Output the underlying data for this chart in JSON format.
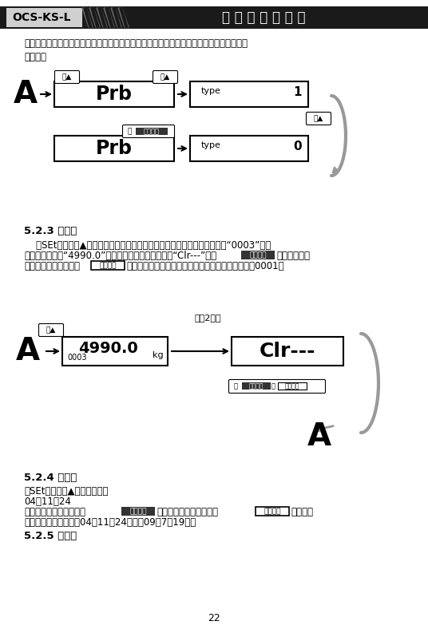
{
  "title_left": "OCS-KS-L",
  "title_right": "无 线 数 传 式 吸 秤",
  "page_number": "22",
  "para1": "序号、编号和日期打印时，在称重清单中不会再有单笔的序号和称重净值而只有总的次数和\n累计值。",
  "section_523": "5.2.3 总清除",
  "section_524": "5.2.4 设日期",
  "section_524_line2": "04．11．24",
  "section_525": "5.2.5 设时间",
  "bg_color": "#ffffff",
  "header_bg": "#1a1a1a",
  "header_left_bg": "#d0d0d0",
  "box_border": "#000000",
  "arrow_color": "#555555"
}
